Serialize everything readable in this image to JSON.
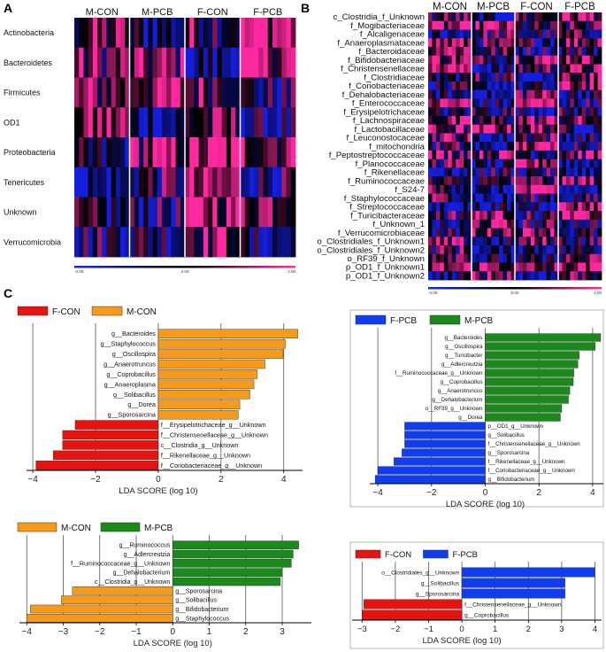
{
  "panel_labels": {
    "A": "A",
    "B": "B",
    "C": "C"
  },
  "colors": {
    "F-CON": "#e8130f",
    "M-CON": "#f59a1b",
    "F-PCB": "#0f3ef2",
    "M-PCB": "#1a8a1a",
    "heat_low": "#1a2ad8",
    "heat_mid": "#000000",
    "heat_high": "#ff2f9e"
  },
  "chart_data": [
    {
      "id": "A",
      "type": "heatmap",
      "groups": [
        "M-CON",
        "M-PCB",
        "F-CON",
        "F-PCB"
      ],
      "rows": [
        "Actinobacteria",
        "Bacteroidetes",
        "Firmicutes",
        "OD1",
        "Proteobacteria",
        "Tenericutes",
        "Unknown",
        "Verrucomicrobia"
      ],
      "scale_labels": [
        "-2.00",
        "0.00",
        "2.00"
      ]
    },
    {
      "id": "B",
      "type": "heatmap",
      "groups": [
        "M-CON",
        "M-PCB",
        "F-CON",
        "F-PCB"
      ],
      "rows": [
        "c_Clostridia_f_Unknown",
        "f_Mogibacteriaceae",
        "f_Alcaligenaceae",
        "f_Anaeroplasmataceae",
        "f_Bacteroidaceae",
        "f_Bifidobacteriaceae",
        "f_Christensenellaceae",
        "f_Clostridiaceae",
        "f_Coriobacteriaceae",
        "f_Dehalobacteriaceae",
        "f_Enterococcaceae",
        "f_Erysipelotrichaceae",
        "f_Lachnospiraceae",
        "f_Lactobacillaceae",
        "f_Leuconostocaceae",
        "f_mitochondria",
        "f_Peptostreptococcaceae",
        "f_Planococcaceae",
        "f_Rikenellaceae",
        "f_Ruminococcaceae",
        "f_S24-7",
        "f_Staphylococcaceae",
        "f_Streptococcaceae",
        "f_Turicibacteraceae",
        "f_Unknown_1",
        "f_Verrucomicrobiaceae",
        "o_Clostridiales_f_Unknown1",
        "o_Clostridiales_f_Unknown2",
        "o_RF39_f_Unknown",
        "p_OD1_f_Unknown1",
        "p_OD1_f_Unknown2"
      ],
      "scale_labels": [
        "-2.00",
        "0.00",
        "2.00"
      ]
    },
    {
      "id": "C1",
      "type": "bar",
      "orientation": "horizontal",
      "xlabel": "LDA SCORE (log 10)",
      "xlim": [
        -4.2,
        4.6
      ],
      "xticks": [
        -4,
        -2,
        0,
        2,
        4
      ],
      "legend": [
        {
          "name": "F-CON",
          "color": "#e8130f"
        },
        {
          "name": "M-CON",
          "color": "#f59a1b"
        }
      ],
      "bars": [
        {
          "label": "g__Bacteroides",
          "value": 4.45,
          "group": "M-CON"
        },
        {
          "label": "g__Staphylococcus",
          "value": 4.05,
          "group": "M-CON"
        },
        {
          "label": "g__Oscillospira",
          "value": 3.98,
          "group": "M-CON"
        },
        {
          "label": "g__Anaerotruncus",
          "value": 3.4,
          "group": "M-CON"
        },
        {
          "label": "g__Coprobacillus",
          "value": 3.15,
          "group": "M-CON"
        },
        {
          "label": "g__Anaeroplasma",
          "value": 3.05,
          "group": "M-CON"
        },
        {
          "label": "g__Solibacillus",
          "value": 2.92,
          "group": "M-CON"
        },
        {
          "label": "g__Dorea",
          "value": 2.6,
          "group": "M-CON"
        },
        {
          "label": "g__Sporosarcina",
          "value": 2.55,
          "group": "M-CON"
        },
        {
          "label": "f__Erysipelotrichaceae_g__Unknown",
          "value": -2.65,
          "group": "F-CON"
        },
        {
          "label": "f__Christensenellaceae_g__Unknown",
          "value": -3.05,
          "group": "F-CON"
        },
        {
          "label": "c__Clostridia_g__Unknown",
          "value": -3.05,
          "group": "F-CON"
        },
        {
          "label": "f__Rikenellaceae_g__Unknown",
          "value": -3.35,
          "group": "F-CON"
        },
        {
          "label": "f__Coriobacteriaceae_g__Unknown",
          "value": -3.9,
          "group": "F-CON"
        }
      ]
    },
    {
      "id": "C2",
      "type": "bar",
      "orientation": "horizontal",
      "xlabel": "LDA SCORE (log 10)",
      "xlim": [
        -4.3,
        4.4
      ],
      "xticks": [
        -4,
        -2,
        0,
        2,
        4
      ],
      "legend": [
        {
          "name": "F-PCB",
          "color": "#0f3ef2"
        },
        {
          "name": "M-PCB",
          "color": "#1a8a1a"
        }
      ],
      "bars": [
        {
          "label": "g__Bacteroides",
          "value": 4.3,
          "group": "M-PCB"
        },
        {
          "label": "g__Oscillospira",
          "value": 4.1,
          "group": "M-PCB"
        },
        {
          "label": "g__Turicibacter",
          "value": 3.5,
          "group": "M-PCB"
        },
        {
          "label": "g__Adlercreutzia",
          "value": 3.45,
          "group": "M-PCB"
        },
        {
          "label": "f__Ruminococcaceae_g__Unknown",
          "value": 3.3,
          "group": "M-PCB"
        },
        {
          "label": "g__Coprobacillus",
          "value": 3.28,
          "group": "M-PCB"
        },
        {
          "label": "g__Anaerotruncus",
          "value": 3.15,
          "group": "M-PCB"
        },
        {
          "label": "g__Dehalobacterium",
          "value": 3.1,
          "group": "M-PCB"
        },
        {
          "label": "o__RF39_g__Unknown",
          "value": 2.85,
          "group": "M-PCB"
        },
        {
          "label": "g__Dorea",
          "value": 2.8,
          "group": "M-PCB"
        },
        {
          "label": "p__OD1_g__Unknown",
          "value": -3.0,
          "group": "F-PCB"
        },
        {
          "label": "g__Solibacillus",
          "value": -3.0,
          "group": "F-PCB"
        },
        {
          "label": "f__Christensenellaceae_g__Unknown",
          "value": -3.0,
          "group": "F-PCB"
        },
        {
          "label": "g__Sporosarcina",
          "value": -3.1,
          "group": "F-PCB"
        },
        {
          "label": "f__Rikenellaceae_g__Unknown",
          "value": -3.4,
          "group": "F-PCB"
        },
        {
          "label": "f__Coriobacteriaceae_g__Unknown",
          "value": -4.0,
          "group": "F-PCB"
        },
        {
          "label": "g__Bifidobacterium",
          "value": -4.1,
          "group": "F-PCB"
        }
      ]
    },
    {
      "id": "C3",
      "type": "bar",
      "orientation": "horizontal",
      "xlabel": "LDA SCORE (log 10)",
      "xlim": [
        -4.2,
        3.8
      ],
      "xticks": [
        -4,
        -3,
        -2,
        -1,
        0,
        1,
        2,
        3
      ],
      "legend": [
        {
          "name": "M-CON",
          "color": "#f59a1b"
        },
        {
          "name": "M-PCB",
          "color": "#1a8a1a"
        }
      ],
      "bars": [
        {
          "label": "g__Ruminococcus",
          "value": 3.45,
          "group": "M-PCB"
        },
        {
          "label": "g__Adlercreutzia",
          "value": 3.3,
          "group": "M-PCB"
        },
        {
          "label": "f__Ruminococcaceae_g__Unknown",
          "value": 3.25,
          "group": "M-PCB"
        },
        {
          "label": "g__Dehalobacterium",
          "value": 3.0,
          "group": "M-PCB"
        },
        {
          "label": "c__Clostridia_g__Unknown",
          "value": 2.95,
          "group": "M-PCB"
        },
        {
          "label": "g__Sporosarcina",
          "value": -2.75,
          "group": "M-CON"
        },
        {
          "label": "g__Solibacillus",
          "value": -3.05,
          "group": "M-CON"
        },
        {
          "label": "g__Bifidobacterium",
          "value": -3.9,
          "group": "M-CON"
        },
        {
          "label": "g__Staphylococcus",
          "value": -4.0,
          "group": "M-CON"
        }
      ]
    },
    {
      "id": "C4",
      "type": "bar",
      "orientation": "horizontal",
      "xlabel": "LDA SCORE (log 10)",
      "xlim": [
        -3.3,
        4.2
      ],
      "xticks": [
        -3,
        -2,
        -1,
        0,
        1,
        2,
        3,
        4
      ],
      "legend": [
        {
          "name": "F-CON",
          "color": "#e8130f"
        },
        {
          "name": "F-PCB",
          "color": "#0f3ef2"
        }
      ],
      "bars": [
        {
          "label": "o__Clostridiales_g__Unknown",
          "value": 4.0,
          "group": "F-PCB"
        },
        {
          "label": "g__Solibacillus",
          "value": 3.1,
          "group": "F-PCB"
        },
        {
          "label": "g__Sporosarcina",
          "value": 3.1,
          "group": "F-PCB"
        },
        {
          "label": "f__Christensenellaceae_g__Unknown",
          "value": -2.95,
          "group": "F-CON"
        },
        {
          "label": "g__Coprobacillus",
          "value": -3.0,
          "group": "F-CON"
        }
      ]
    }
  ]
}
